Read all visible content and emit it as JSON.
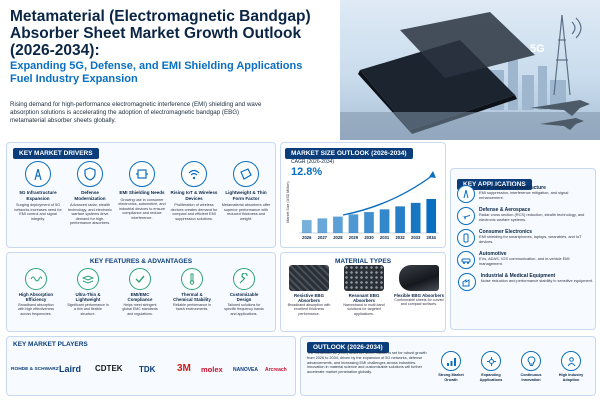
{
  "header": {
    "title": "Metamaterial (Electromagnetic Bandgap) Absorber Sheet Market Growth Outlook (2026-2034):",
    "subtitle": "Expanding 5G, Defense, and EMI Shielding Applications Fuel Industry Expansion",
    "intro": "Rising demand for high-performance electromagnetic interference (EMI) shielding and wave absorption solutions is accelerating the adoption of electromagnetic bandgap (EBG) metamaterial absorber sheets globally.",
    "hero_badge": "5G"
  },
  "drivers": {
    "heading": "KEY MARKET DRIVERS",
    "items": [
      {
        "icon": "tower-icon",
        "title": "5G Infrastructure Expansion",
        "desc": "Surging deployment of 5G networks increases need for EMI control and signal integrity."
      },
      {
        "icon": "shield-icon",
        "title": "Defense Modernization",
        "desc": "Advanced radar, stealth technology, and electronic warfare systems drive demand for high-performance absorbers."
      },
      {
        "icon": "emi-shield-icon",
        "title": "EMI Shielding Needs",
        "desc": "Growing use in consumer electronics, automotive, and industrial devices to ensure compliance and reduce interference."
      },
      {
        "icon": "wifi-icon",
        "title": "Rising IoT & Wireless Devices",
        "desc": "Proliferation of wireless devices creates demand for compact and efficient EMI suppression solutions."
      },
      {
        "icon": "sheet-icon",
        "title": "Lightweight & Thin Form Factor",
        "desc": "Metamaterial absorbers offer superior performance with reduced thickness and weight."
      }
    ]
  },
  "outlook_chart": {
    "heading": "MARKET SIZE OUTLOOK (2026-2034)",
    "cagr_label": "CAGR (2026-2034)",
    "cagr_value": "12.8%"
  },
  "chart_data": {
    "type": "bar",
    "title": "MARKET SIZE OUTLOOK (2026-2034)",
    "categories": [
      "2026",
      "2027",
      "2028",
      "2029",
      "2030",
      "2031",
      "2032",
      "2033",
      "2034"
    ],
    "values": [
      1.0,
      1.13,
      1.27,
      1.44,
      1.62,
      1.83,
      2.06,
      2.33,
      2.63
    ],
    "ylabel": "Market Size (USD Million)",
    "xlabel": "",
    "grid": false,
    "color": "#0a6fc0"
  },
  "applications": {
    "heading": "KEY APPLICATIONS",
    "items": [
      {
        "icon": "tower-icon",
        "title": "5G & Telecom Infrastructure",
        "desc": "EMI suppression, interference mitigation, and signal enhancement."
      },
      {
        "icon": "jet-icon",
        "title": "Defense & Aerospace",
        "desc": "Radar cross section (RCS) reduction, stealth technology, and electronic warfare systems."
      },
      {
        "icon": "phone-icon",
        "title": "Consumer Electronics",
        "desc": "EMI shielding for smartphones, laptops, wearables, and IoT devices."
      },
      {
        "icon": "car-icon",
        "title": "Automotive",
        "desc": "EVs, ADAS, V2X communication, and in-vehicle EMI management."
      },
      {
        "icon": "factory-icon",
        "title": "Industrial & Medical Equipment",
        "desc": "Noise reduction and performance stability in sensitive equipment."
      }
    ]
  },
  "features": {
    "heading": "KEY FEATURES & ADVANTAGES",
    "items": [
      {
        "icon": "wave-icon",
        "title": "High Absorption Efficiency",
        "desc": "Broadband absorption with high effectiveness across frequencies."
      },
      {
        "icon": "layers-icon",
        "title": "Ultra-Thin & Lightweight",
        "desc": "Significant performance in a thin and flexible structure."
      },
      {
        "icon": "check-icon",
        "title": "EMI/EMC Compliance",
        "desc": "Helps meet stringent global EMC standards and regulations."
      },
      {
        "icon": "thermometer-icon",
        "title": "Thermal & Chemical Stability",
        "desc": "Reliable performance in harsh environments."
      },
      {
        "icon": "wrench-icon",
        "title": "Customizable Design",
        "desc": "Tailored solutions for specific frequency bands and applications."
      }
    ]
  },
  "materials": {
    "heading": "MATERIAL TYPES",
    "items": [
      {
        "title": "Resistive EBG Absorbers",
        "desc": "Broadband absorption with excellent thickness performance."
      },
      {
        "title": "Resonant EBG Absorbers",
        "desc": "Narrowband to multi-band solutions for targeted applications."
      },
      {
        "title": "Flexible EBG Absorbers",
        "desc": "Conformable sheets for curved and compact surfaces."
      }
    ]
  },
  "players": {
    "heading": "KEY MARKET PLAYERS",
    "logos": [
      "ROHDE & SCHWARZ",
      "Laird",
      "CDTEK",
      "TDK",
      "3M",
      "molex",
      "NANOVEA",
      "Arcreach"
    ]
  },
  "outlook": {
    "heading": "OUTLOOK (2026-2034)",
    "text": "The metamaterial (EBG) absorber sheet market is set for robust growth from 2026 to 2034, driven by the expansion of 5G networks, defense advancements, and increasing EMI challenges across industries. Innovation in material science and customizable solutions will further accelerate market penetration globally.",
    "icons": [
      {
        "icon": "growth-icon",
        "label": "Strong Market Growth"
      },
      {
        "icon": "expand-icon",
        "label": "Expanding Applications"
      },
      {
        "icon": "innovation-icon",
        "label": "Continuous Innovation"
      },
      {
        "icon": "adoption-icon",
        "label": "High Industry Adoption"
      }
    ]
  },
  "colors": {
    "navy": "#0b2545",
    "accent_blue": "#0a6fc0",
    "green": "#2aa37a",
    "panel_bg": "#f7fbff"
  }
}
